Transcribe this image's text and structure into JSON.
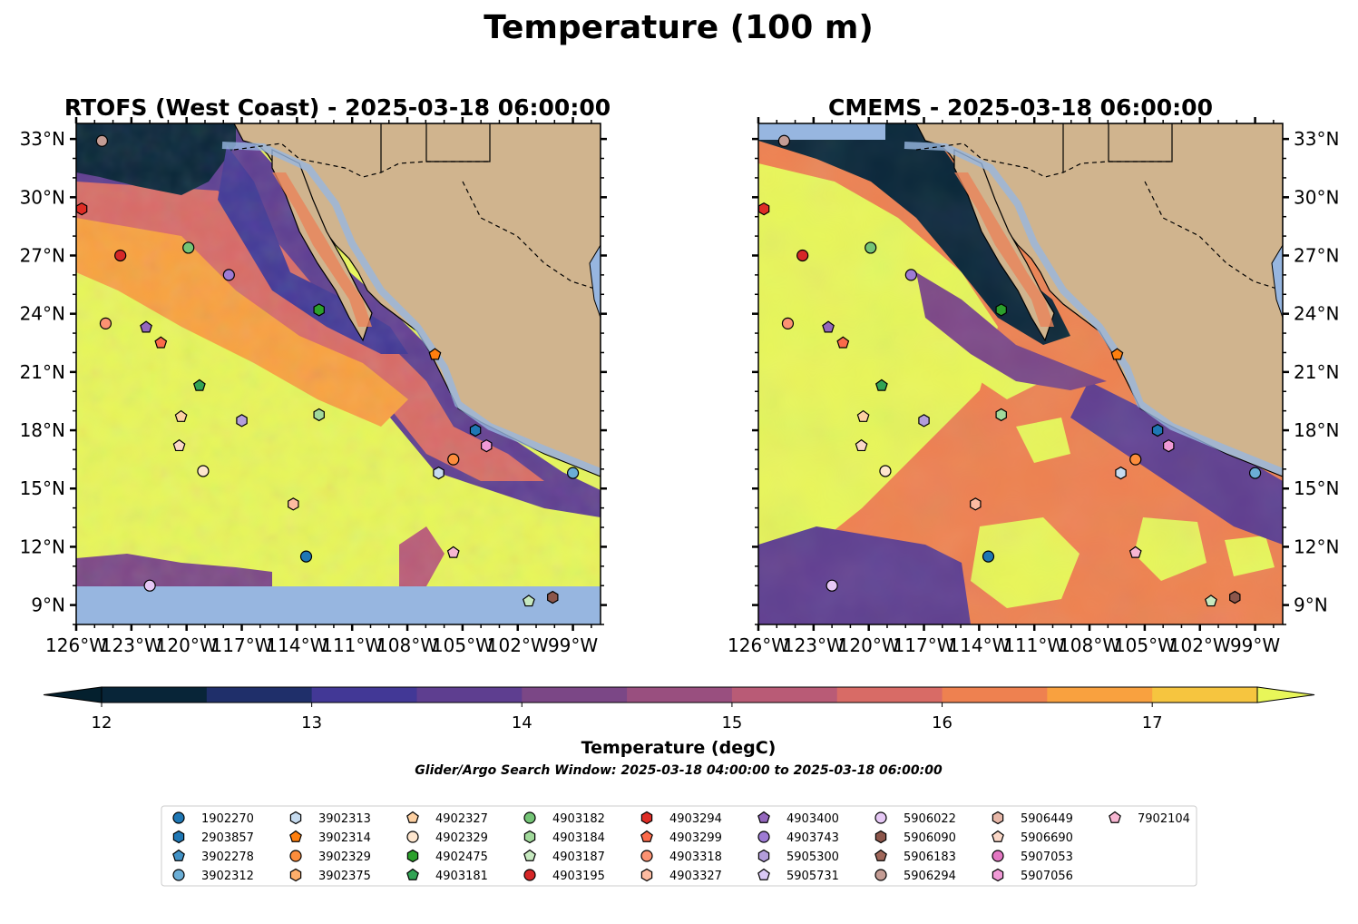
{
  "figure": {
    "suptitle": "Temperature (100 m)",
    "subtitle": "Glider/Argo Search Window: 2025-03-18 04:00:00 to 2025-03-18 06:00:00"
  },
  "colors": {
    "land": "#d0b48e",
    "water_mask": "#97b6e0",
    "marker_edge": "#000000"
  },
  "colorbar": {
    "label": "Temperature (degC)",
    "ticks": [
      "12",
      "13",
      "14",
      "15",
      "16",
      "17"
    ],
    "levels": [
      12,
      12.5,
      13,
      13.5,
      14,
      14.5,
      15,
      15.5,
      16,
      16.5,
      17,
      17.5
    ],
    "colors": [
      "#082538",
      "#1f2f6a",
      "#423896",
      "#5e3e90",
      "#7b4786",
      "#994f7f",
      "#b95b76",
      "#d86b66",
      "#ee8150",
      "#f9a13f",
      "#f6c53f"
    ],
    "extend_low": "#04202e",
    "extend_high": "#e8f659"
  },
  "chart_data": [
    {
      "type": "contour-map",
      "title": "RTOFS (West Coast) - 2025-03-18 06:00:00",
      "x_ticks": [
        "126°W",
        "123°W",
        "120°W",
        "117°W",
        "114°W",
        "111°W",
        "108°W",
        "105°W",
        "102°W",
        "99°W"
      ],
      "y_ticks": [
        "33°N",
        "30°N",
        "27°N",
        "24°N",
        "21°N",
        "18°N",
        "15°N",
        "12°N",
        "9°N"
      ],
      "lon_range": [
        -126,
        -97.5
      ],
      "lat_range": [
        8,
        33.8
      ],
      "colorbar_range": [
        12,
        17.5
      ]
    },
    {
      "type": "contour-map",
      "title": "CMEMS - 2025-03-18 06:00:00",
      "x_ticks": [
        "126°W",
        "123°W",
        "120°W",
        "117°W",
        "114°W",
        "111°W",
        "108°W",
        "105°W",
        "102°W",
        "99°W"
      ],
      "y_ticks": [
        "33°N",
        "30°N",
        "27°N",
        "24°N",
        "21°N",
        "18°N",
        "15°N",
        "12°N",
        "9°N"
      ],
      "lon_range": [
        -126,
        -97.5
      ],
      "lat_range": [
        8,
        33.8
      ],
      "colorbar_range": [
        12,
        17.5
      ]
    }
  ],
  "floats": [
    {
      "id": "1902270",
      "marker": "circle",
      "color": "#1f77b4",
      "lon": -113.5,
      "lat": 11.5
    },
    {
      "id": "2903857",
      "marker": "hexagon",
      "color": "#1f77b4",
      "lon": -104.3,
      "lat": 18.0
    },
    {
      "id": "3902278",
      "marker": "pentagon",
      "color": "#4292c6",
      "lon": null,
      "lat": null
    },
    {
      "id": "3902312",
      "marker": "circle",
      "color": "#6baed6",
      "lon": -99.0,
      "lat": 15.8
    },
    {
      "id": "3902313",
      "marker": "hexagon",
      "color": "#c6dbef",
      "lon": -106.3,
      "lat": 15.8
    },
    {
      "id": "3902314",
      "marker": "pentagon",
      "color": "#ff7f0e",
      "lon": -106.5,
      "lat": 21.9
    },
    {
      "id": "3902329",
      "marker": "circle",
      "color": "#fd8d3c",
      "lon": -105.5,
      "lat": 16.5
    },
    {
      "id": "3902375",
      "marker": "hexagon",
      "color": "#fdae6b",
      "lon": null,
      "lat": null
    },
    {
      "id": "4902327",
      "marker": "pentagon",
      "color": "#fdd0a2",
      "lon": -120.3,
      "lat": 18.7
    },
    {
      "id": "4902329",
      "marker": "circle",
      "color": "#fee6ce",
      "lon": -119.1,
      "lat": 15.9
    },
    {
      "id": "4902475",
      "marker": "hexagon",
      "color": "#2ca02c",
      "lon": -112.8,
      "lat": 24.2
    },
    {
      "id": "4903181",
      "marker": "pentagon",
      "color": "#31a354",
      "lon": -119.3,
      "lat": 20.3
    },
    {
      "id": "4903182",
      "marker": "circle",
      "color": "#74c476",
      "lon": -119.9,
      "lat": 27.4
    },
    {
      "id": "4903184",
      "marker": "hexagon",
      "color": "#a1d99b",
      "lon": -112.8,
      "lat": 18.8
    },
    {
      "id": "4903187",
      "marker": "pentagon",
      "color": "#c7e9c0",
      "lon": -101.4,
      "lat": 9.2
    },
    {
      "id": "4903195",
      "marker": "circle",
      "color": "#d62728",
      "lon": -123.6,
      "lat": 27.0
    },
    {
      "id": "4903294",
      "marker": "hexagon",
      "color": "#de2d26",
      "lon": -125.7,
      "lat": 29.4
    },
    {
      "id": "4903299",
      "marker": "pentagon",
      "color": "#fb6a4a",
      "lon": -121.4,
      "lat": 22.5
    },
    {
      "id": "4903318",
      "marker": "circle",
      "color": "#fc9272",
      "lon": -124.4,
      "lat": 23.5
    },
    {
      "id": "4903327",
      "marker": "hexagon",
      "color": "#fcbba1",
      "lon": -114.2,
      "lat": 14.2
    },
    {
      "id": "4903400",
      "marker": "pentagon",
      "color": "#9467bd",
      "lon": -122.2,
      "lat": 23.3
    },
    {
      "id": "4903743",
      "marker": "circle",
      "color": "#9e7bd4",
      "lon": -117.7,
      "lat": 26.0
    },
    {
      "id": "5905300",
      "marker": "hexagon",
      "color": "#b39ddb",
      "lon": -117.0,
      "lat": 18.5
    },
    {
      "id": "5905731",
      "marker": "pentagon",
      "color": "#dac9f5",
      "lon": null,
      "lat": null
    },
    {
      "id": "5906022",
      "marker": "circle",
      "color": "#e6c8f5",
      "lon": -122.0,
      "lat": 10.0
    },
    {
      "id": "5906090",
      "marker": "hexagon",
      "color": "#8c564b",
      "lon": -100.1,
      "lat": 9.4
    },
    {
      "id": "5906183",
      "marker": "pentagon",
      "color": "#a0675a",
      "lon": null,
      "lat": null
    },
    {
      "id": "5906294",
      "marker": "circle",
      "color": "#c49c94",
      "lon": -124.6,
      "lat": 32.9
    },
    {
      "id": "5906449",
      "marker": "hexagon",
      "color": "#e7b7a8",
      "lon": null,
      "lat": null
    },
    {
      "id": "5906690",
      "marker": "pentagon",
      "color": "#fad7c7",
      "lon": -120.4,
      "lat": 17.2
    },
    {
      "id": "5907053",
      "marker": "circle",
      "color": "#e377c2",
      "lon": null,
      "lat": null
    },
    {
      "id": "5907056",
      "marker": "hexagon",
      "color": "#f09ad6",
      "lon": -103.7,
      "lat": 17.2
    },
    {
      "id": "7902104",
      "marker": "pentagon",
      "color": "#f7b6d2",
      "lon": -105.5,
      "lat": 11.7
    }
  ]
}
